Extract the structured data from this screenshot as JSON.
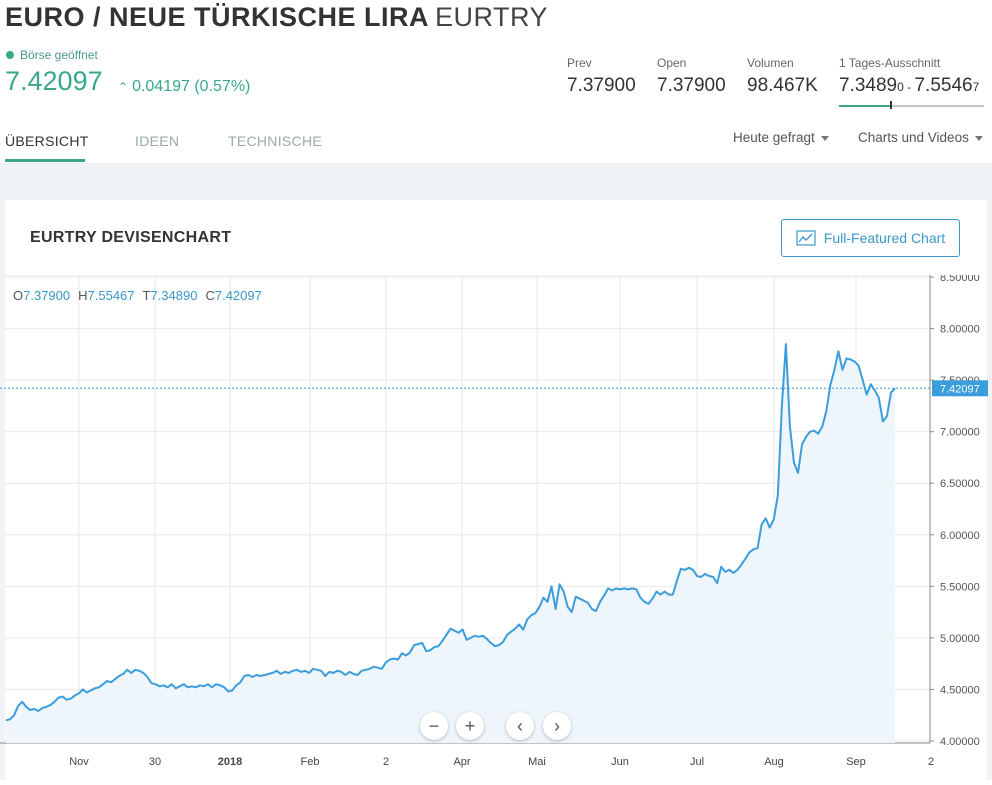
{
  "header": {
    "title_name": "EURO / NEUE TÜRKISCHE LIRA",
    "title_symbol": "EURTRY",
    "market_status": "Börse geöffnet",
    "price": "7.42097",
    "change": "0.04197 (0.57%)"
  },
  "stats": {
    "prev": {
      "label": "Prev",
      "value": "7.37900"
    },
    "open": {
      "label": "Open",
      "value": "7.37900"
    },
    "volume": {
      "label": "Volumen",
      "value": "98.467K"
    },
    "day_range": {
      "label": "1 Tages-Ausschnitt",
      "low_main": "7.3489",
      "low_small": "0",
      "sep": " - ",
      "high_main": "7.5546",
      "high_small": "7"
    },
    "day_range_position": 0.36
  },
  "tabs": [
    {
      "label": "ÜBERSICHT",
      "active": true
    },
    {
      "label": "IDEEN",
      "active": false
    },
    {
      "label": "TECHNISCHE",
      "active": false
    }
  ],
  "dropdowns": {
    "asked": "Heute gefragt",
    "charts": "Charts und Videos"
  },
  "card": {
    "title": "EURTRY DEVISENCHART",
    "ff_button": "Full-Featured Chart"
  },
  "ohlc": {
    "o_label": "O",
    "o": "7.37900",
    "h_label": "H",
    "h": "7.55467",
    "t_label": "T",
    "t": "7.34890",
    "c_label": "C",
    "c": "7.42097"
  },
  "colors": {
    "accent_green": "#37a989",
    "accent_blue": "#3a97c9",
    "line": "#3b9ddb",
    "fill": "#eef6fb"
  },
  "icons": [
    "chart-line-icon",
    "zoom-out-icon",
    "zoom-in-icon",
    "scroll-left-icon",
    "scroll-right-icon",
    "caret-down-icon"
  ],
  "chart_data": {
    "type": "area",
    "title": "EURTRY DEVISENCHART",
    "x_ticks": [
      "Nov",
      "30",
      "2018",
      "Feb",
      "2",
      "Apr",
      "Mai",
      "Jun",
      "Jul",
      "Aug",
      "Sep",
      "2"
    ],
    "y_ticks": [
      "8.50000",
      "8.00000",
      "7.50000",
      "7.00000",
      "6.50000",
      "6.00000",
      "5.50000",
      "5.00000",
      "4.50000",
      "4.00000"
    ],
    "ylim": [
      3.98,
      8.52
    ],
    "last_price_label": "7.42097",
    "last_price": 7.42097,
    "grid": true,
    "series": [
      {
        "values": [
          4.2,
          4.21,
          4.25,
          4.34,
          4.38,
          4.33,
          4.3,
          4.31,
          4.29,
          4.32,
          4.33,
          4.35,
          4.38,
          4.42,
          4.43,
          4.4,
          4.41,
          4.44,
          4.46,
          4.5,
          4.47,
          4.49,
          4.51,
          4.52,
          4.55,
          4.58,
          4.57,
          4.6,
          4.63,
          4.65,
          4.69,
          4.66,
          4.69,
          4.68,
          4.66,
          4.62,
          4.56,
          4.55,
          4.53,
          4.54,
          4.52,
          4.55,
          4.51,
          4.53,
          4.55,
          4.52,
          4.53,
          4.52,
          4.54,
          4.53,
          4.55,
          4.52,
          4.55,
          4.54,
          4.52,
          4.48,
          4.49,
          4.54,
          4.57,
          4.63,
          4.64,
          4.62,
          4.64,
          4.63,
          4.64,
          4.65,
          4.66,
          4.68,
          4.65,
          4.67,
          4.66,
          4.68,
          4.69,
          4.67,
          4.68,
          4.66,
          4.7,
          4.69,
          4.68,
          4.63,
          4.67,
          4.66,
          4.68,
          4.67,
          4.64,
          4.67,
          4.65,
          4.64,
          4.68,
          4.69,
          4.7,
          4.72,
          4.71,
          4.7,
          4.76,
          4.79,
          4.8,
          4.79,
          4.85,
          4.83,
          4.86,
          4.93,
          4.94,
          4.95,
          4.87,
          4.88,
          4.91,
          4.92,
          4.97,
          5.03,
          5.09,
          5.07,
          5.05,
          5.08,
          4.98,
          5.0,
          5.02,
          5.01,
          5.02,
          4.99,
          4.95,
          4.92,
          4.93,
          4.96,
          5.03,
          5.06,
          5.09,
          5.13,
          5.08,
          5.18,
          5.22,
          5.24,
          5.3,
          5.39,
          5.35,
          5.5,
          5.28,
          5.52,
          5.45,
          5.3,
          5.25,
          5.4,
          5.38,
          5.36,
          5.34,
          5.28,
          5.26,
          5.35,
          5.41,
          5.48,
          5.46,
          5.48,
          5.47,
          5.48,
          5.47,
          5.48,
          5.47,
          5.39,
          5.35,
          5.33,
          5.38,
          5.45,
          5.42,
          5.45,
          5.42,
          5.42,
          5.55,
          5.67,
          5.66,
          5.68,
          5.66,
          5.6,
          5.59,
          5.62,
          5.6,
          5.59,
          5.53,
          5.69,
          5.64,
          5.66,
          5.63,
          5.66,
          5.71,
          5.77,
          5.83,
          5.86,
          5.87,
          6.1,
          6.16,
          6.07,
          6.15,
          6.38,
          7.25,
          7.85,
          7.05,
          6.7,
          6.6,
          6.88,
          6.95,
          7.0,
          7.01,
          6.98,
          7.05,
          7.2,
          7.45,
          7.6,
          7.78,
          7.6,
          7.71,
          7.7,
          7.68,
          7.64,
          7.5,
          7.36,
          7.46,
          7.4,
          7.33,
          7.1,
          7.15,
          7.38,
          7.42097
        ]
      }
    ]
  }
}
